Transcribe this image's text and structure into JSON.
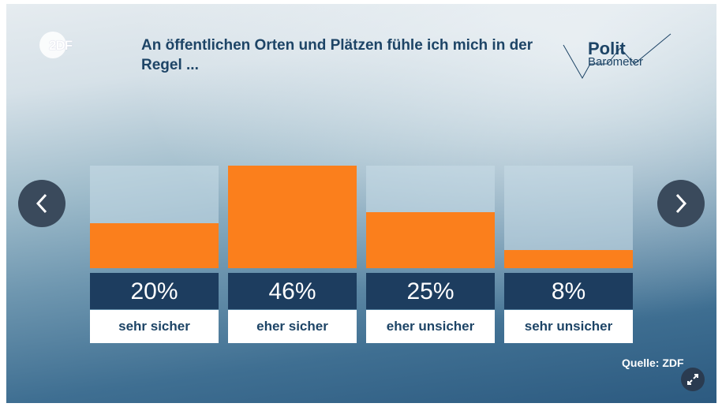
{
  "header": {
    "logo": "ZDF",
    "title": "An öffentlichen Orten und Plätzen fühle ich mich in der Regel ...",
    "brand_top": "Polit",
    "brand_bottom": "Barometer"
  },
  "chart_data": {
    "type": "bar",
    "title": "An öffentlichen Orten und Plätzen fühle ich mich in der Regel ...",
    "categories": [
      "sehr sicher",
      "eher sicher",
      "eher unsicher",
      "sehr unsicher"
    ],
    "values": [
      20,
      46,
      25,
      8
    ],
    "labels": [
      "20%",
      "46%",
      "25%",
      "8%"
    ],
    "ylim": [
      0,
      46
    ],
    "color": "#fb7f1c"
  },
  "footer": {
    "source": "Quelle: ZDF"
  }
}
